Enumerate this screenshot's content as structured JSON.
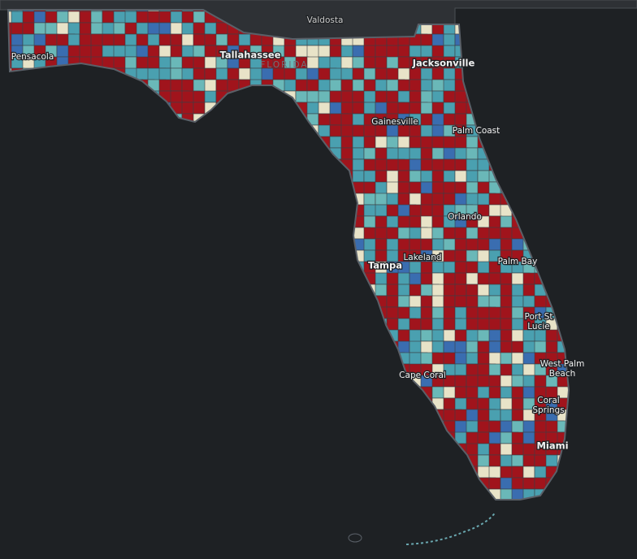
{
  "map": {
    "labels": [
      {
        "lines": [
          "Valdosta"
        ]
      },
      {
        "lines": [
          "Pensacola"
        ]
      },
      {
        "lines": [
          "Tallahassee"
        ]
      },
      {
        "lines": [
          "FLORIDA"
        ]
      },
      {
        "lines": [
          "Jacksonville"
        ]
      },
      {
        "lines": [
          "Gainesville"
        ]
      },
      {
        "lines": [
          "Palm Coast"
        ]
      },
      {
        "lines": [
          "Orlando"
        ]
      },
      {
        "lines": [
          "Tampa"
        ]
      },
      {
        "lines": [
          "Lakeland"
        ]
      },
      {
        "lines": [
          "Palm Bay"
        ]
      },
      {
        "lines": [
          "Port St",
          "Lucie"
        ]
      },
      {
        "lines": [
          "West Palm",
          "Beach"
        ]
      },
      {
        "lines": [
          "Cape Coral"
        ]
      },
      {
        "lines": [
          "Coral",
          "Springs"
        ]
      },
      {
        "lines": [
          "Miami"
        ]
      }
    ]
  }
}
